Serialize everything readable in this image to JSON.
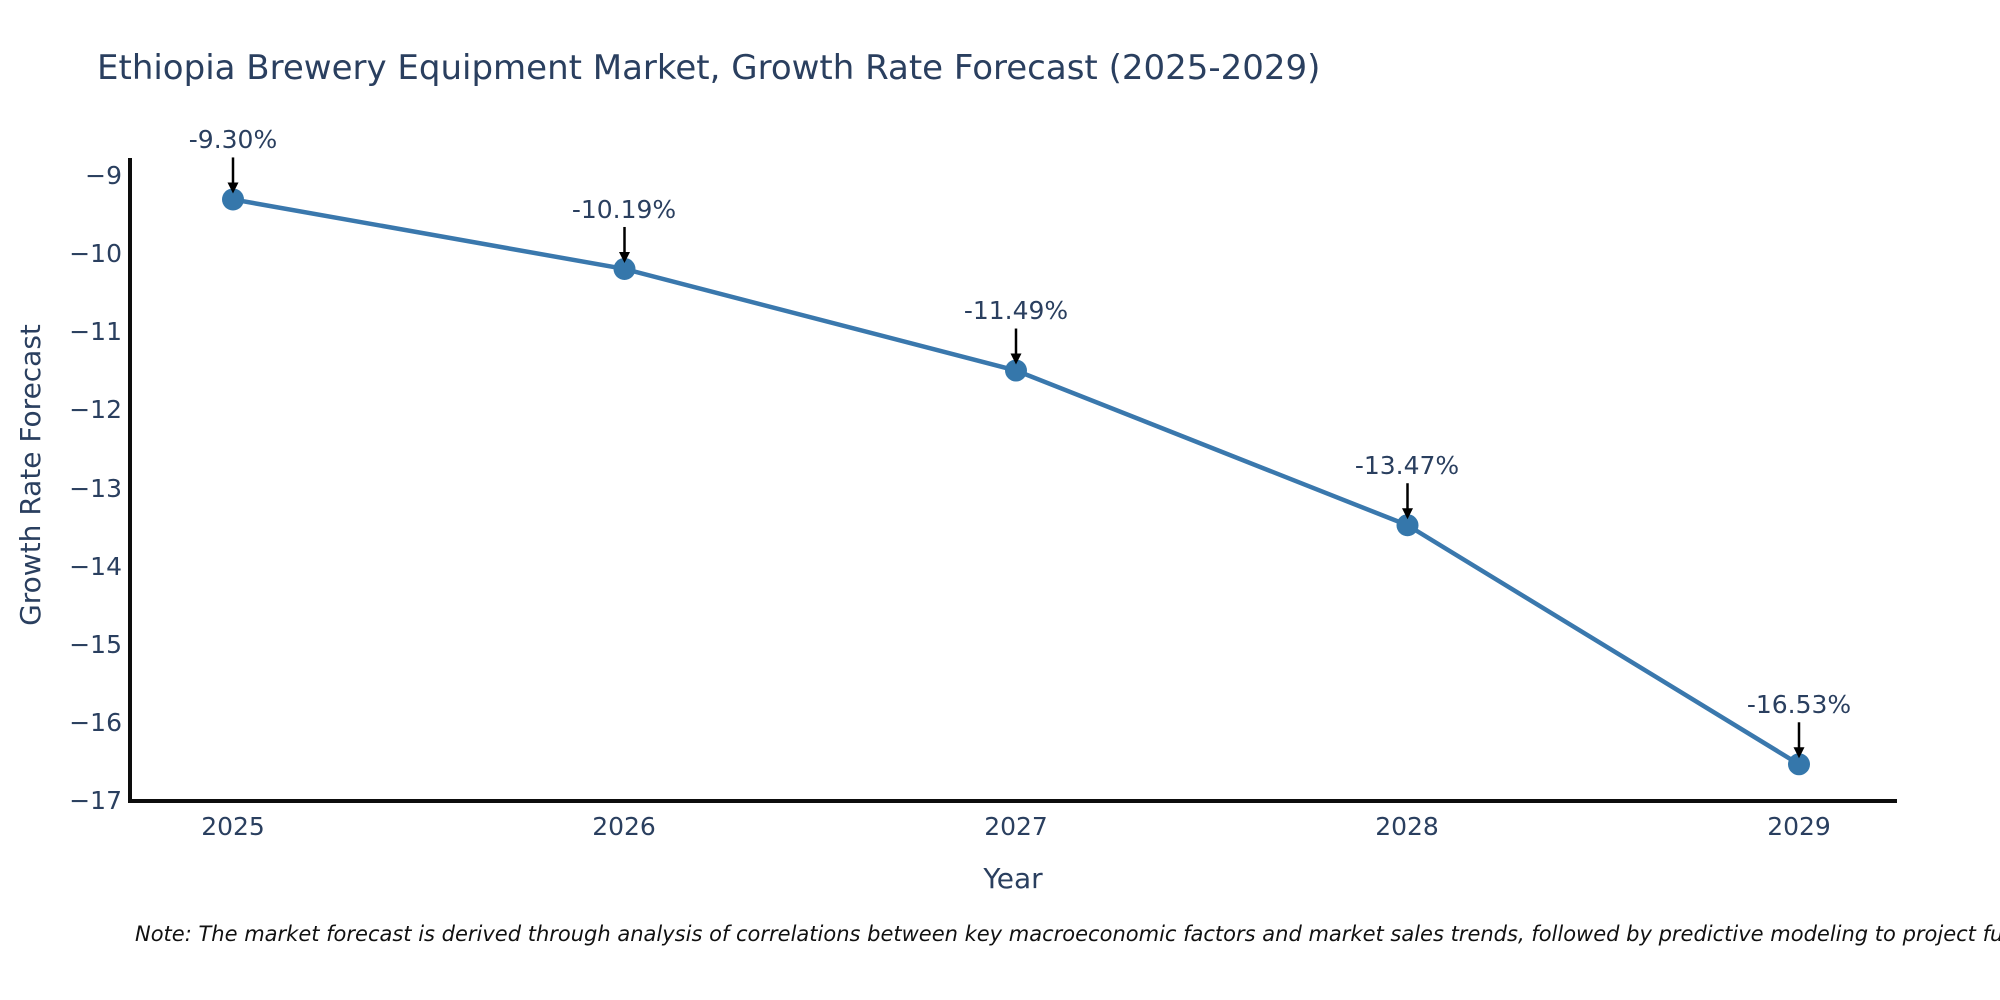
{
  "title": "Ethiopia Brewery Equipment Market, Growth Rate Forecast (2025-2029)",
  "note": "Note: The market forecast is derived through analysis of correlations between key macroeconomic factors and market sales trends, followed by predictive modeling to project future sales",
  "chart_data": {
    "type": "line",
    "title": "Ethiopia Brewery Equipment Market, Growth Rate Forecast (2025-2029)",
    "xlabel": "Year",
    "ylabel": "Growth Rate Forecast",
    "x": [
      2025,
      2026,
      2027,
      2028,
      2029
    ],
    "values": [
      -9.3,
      -10.19,
      -11.49,
      -13.47,
      -16.53
    ],
    "annotations": [
      "-9.30%",
      "-10.19%",
      "-11.49%",
      "-13.47%",
      "-16.53%"
    ],
    "x_ticks": [
      "2025",
      "2026",
      "2027",
      "2028",
      "2029"
    ],
    "y_ticks": [
      "−9",
      "−10",
      "−11",
      "−12",
      "−13",
      "−14",
      "−15",
      "−16",
      "−17"
    ],
    "ylim": [
      -17,
      -8.8
    ],
    "grid": false,
    "legend_position": "none",
    "line_color": "#3a78ad",
    "marker_color": "#3577ab",
    "arrow_color": "#000000",
    "axis_color": "#0d0d0d",
    "text_color": "#2a3f5f"
  }
}
